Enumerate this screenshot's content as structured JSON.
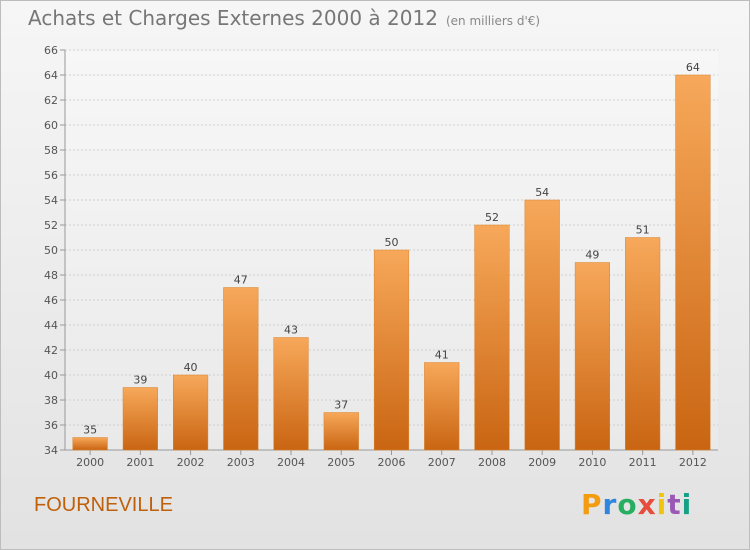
{
  "header": {
    "title": "Achats et Charges Externes 2000 à 2012",
    "subtitle": "(en milliers d'€)"
  },
  "footer": {
    "commune": "FOURNEVILLE",
    "brand": "Proxiti",
    "brand_colors": [
      "#f39c12",
      "#2e86de",
      "#27ae60",
      "#e74c3c",
      "#f1c40f",
      "#9b59b6",
      "#16a085"
    ]
  },
  "chart_data": {
    "type": "bar",
    "title": "Achats et Charges Externes 2000 à 2012",
    "subtitle": "(en milliers d'€)",
    "categories": [
      "2000",
      "2001",
      "2002",
      "2003",
      "2004",
      "2005",
      "2006",
      "2007",
      "2008",
      "2009",
      "2010",
      "2011",
      "2012"
    ],
    "values": [
      35,
      39,
      40,
      47,
      43,
      37,
      50,
      41,
      52,
      54,
      49,
      51,
      64
    ],
    "ylim": [
      34,
      66
    ],
    "yticks": [
      34,
      36,
      38,
      40,
      42,
      44,
      46,
      48,
      50,
      52,
      54,
      56,
      58,
      60,
      62,
      64,
      66
    ],
    "grid": true,
    "bar_color_top": "#f7a85a",
    "bar_color_bottom": "#c96512",
    "xlabel": "",
    "ylabel": ""
  }
}
